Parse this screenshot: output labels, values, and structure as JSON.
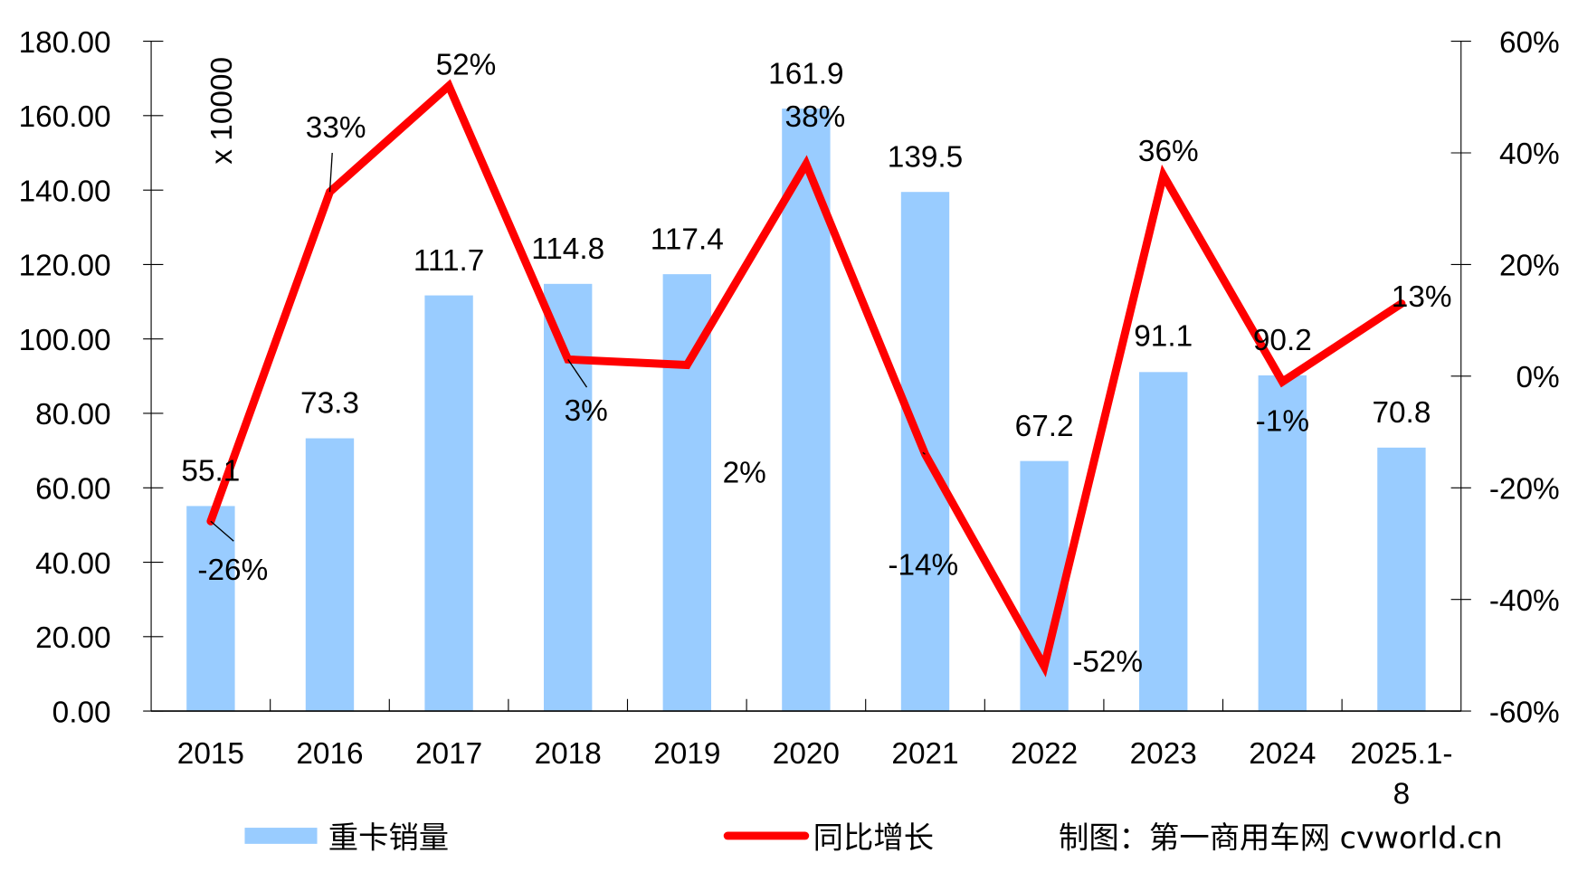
{
  "chart_data": {
    "type": "bar+line",
    "categories": [
      "2015",
      "2016",
      "2017",
      "2018",
      "2019",
      "2020",
      "2021",
      "2022",
      "2023",
      "2024",
      "2025.1-8"
    ],
    "series": [
      {
        "name": "重卡销量",
        "type": "bar",
        "axis": "left",
        "color": "#99CCFF",
        "values": [
          55.1,
          73.3,
          111.7,
          114.8,
          117.4,
          161.9,
          139.5,
          67.2,
          91.1,
          90.2,
          70.8
        ],
        "labels": [
          "55.1",
          "73.3",
          "111.7",
          "114.8",
          "117.4",
          "161.9",
          "139.5",
          "67.2",
          "91.1",
          "90.2",
          "70.8"
        ]
      },
      {
        "name": "同比增长",
        "type": "line",
        "axis": "right",
        "color": "#FF0000",
        "values": [
          -26,
          33,
          52,
          3,
          2,
          38,
          -14,
          -52,
          36,
          -1,
          13
        ],
        "labels": [
          "-26%",
          "33%",
          "52%",
          "3%",
          "2%",
          "38%",
          "-14%",
          "-52%",
          "36%",
          "-1%",
          "13%"
        ]
      }
    ],
    "left_axis": {
      "ylim": [
        0,
        180
      ],
      "ticks": [
        "0.00",
        "20.00",
        "40.00",
        "60.00",
        "80.00",
        "100.00",
        "120.00",
        "140.00",
        "160.00",
        "180.00"
      ],
      "unit_label": "x 10000"
    },
    "right_axis": {
      "ylim": [
        -60,
        60
      ],
      "ticks": [
        "-60%",
        "-40%",
        "-20%",
        "0%",
        "20%",
        "40%",
        "60%"
      ]
    },
    "grid": false,
    "legend_position": "bottom",
    "credit": "制图：第一商用车网  cvworld.cn"
  }
}
